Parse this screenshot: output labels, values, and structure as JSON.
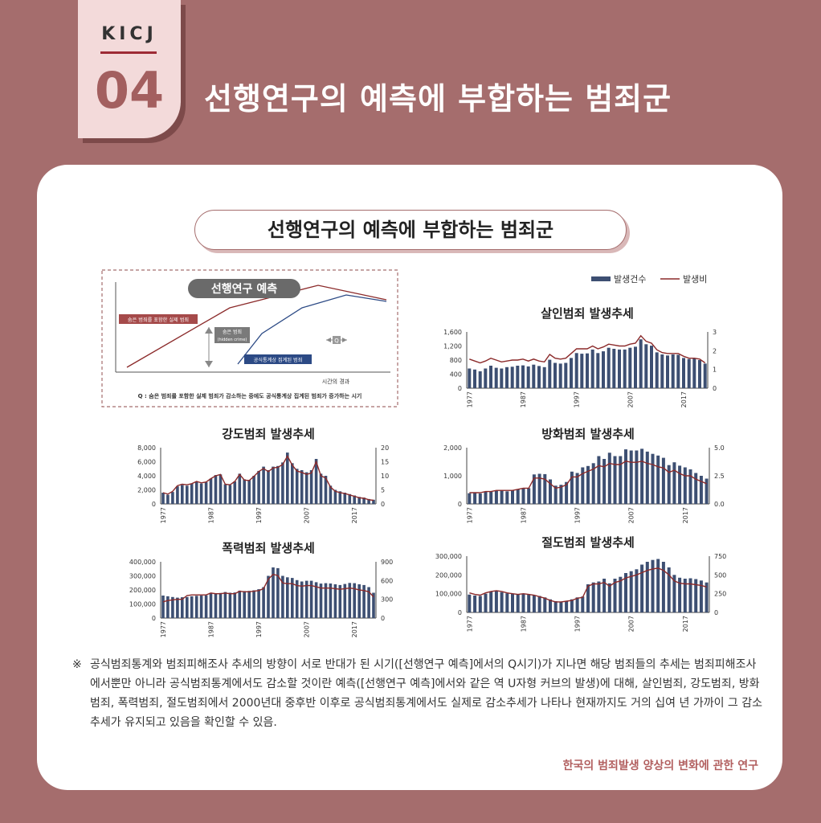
{
  "header": {
    "org": "KICJ",
    "number": "04",
    "title": "선행연구의 예측에 부합하는 범죄군"
  },
  "card": {
    "title": "선행연구의 예측에 부합하는 범죄군"
  },
  "legend": {
    "bars": "발생건수",
    "line": "발생비"
  },
  "diagram": {
    "title": "선행연구 예측",
    "label_actual": "숨은 범죄를 포함한 실제 범죄",
    "label_hidden": "숨은 범죄",
    "label_hidden_en": "(hidden crime)",
    "label_official": "공식통계상 집계된 범죄",
    "label_q": "Q",
    "xlabel": "시간의 경과",
    "caption": "Q : 숨은 범죄를 포함한 실제 범죄가 감소하는 중에도 공식통계상 집계된 범죄가 증가하는 시기"
  },
  "colors": {
    "bar": "#3d4f72",
    "line": "#8b2a2a",
    "accent": "#a56d6d"
  },
  "chart_data": [
    {
      "type": "bar",
      "title": "살인범죄 발생추세",
      "x": [
        1977,
        1978,
        1979,
        1980,
        1981,
        1982,
        1983,
        1984,
        1985,
        1986,
        1987,
        1988,
        1989,
        1990,
        1991,
        1992,
        1993,
        1994,
        1995,
        1996,
        1997,
        1998,
        1999,
        2000,
        2001,
        2002,
        2003,
        2004,
        2005,
        2006,
        2007,
        2008,
        2009,
        2010,
        2011,
        2012,
        2013,
        2014,
        2015,
        2016,
        2017,
        2018,
        2019,
        2020,
        2021
      ],
      "xticks": [
        "1977",
        "1987",
        "1997",
        "2007",
        "2017"
      ],
      "series": [
        {
          "name": "발생건수",
          "axis": "left",
          "values": [
            560,
            530,
            480,
            560,
            640,
            580,
            560,
            600,
            610,
            640,
            650,
            620,
            670,
            630,
            600,
            810,
            720,
            700,
            720,
            860,
            1000,
            980,
            990,
            1100,
            1000,
            1050,
            1150,
            1120,
            1100,
            1100,
            1150,
            1180,
            1390,
            1250,
            1210,
            1020,
            960,
            930,
            960,
            950,
            860,
            830,
            850,
            800,
            700
          ]
        },
        {
          "name": "발생비",
          "axis": "right",
          "values": [
            1.55,
            1.45,
            1.35,
            1.45,
            1.6,
            1.5,
            1.4,
            1.45,
            1.5,
            1.5,
            1.55,
            1.45,
            1.55,
            1.45,
            1.4,
            1.8,
            1.6,
            1.55,
            1.6,
            1.85,
            2.1,
            2.1,
            2.1,
            2.25,
            2.1,
            2.2,
            2.35,
            2.3,
            2.25,
            2.25,
            2.35,
            2.4,
            2.8,
            2.5,
            2.4,
            2.05,
            1.9,
            1.85,
            1.85,
            1.85,
            1.7,
            1.6,
            1.6,
            1.55,
            1.35
          ]
        }
      ],
      "yleft": {
        "min": 0,
        "max": 1600,
        "ticks": [
          "0",
          "400",
          "800",
          "1,200",
          "1,600"
        ]
      },
      "yright": {
        "min": 0,
        "max": 3,
        "ticks": [
          "0",
          "1",
          "2",
          "3"
        ]
      }
    },
    {
      "type": "bar",
      "title": "강도범죄 발생추세",
      "x": [
        1977,
        1978,
        1979,
        1980,
        1981,
        1982,
        1983,
        1984,
        1985,
        1986,
        1987,
        1988,
        1989,
        1990,
        1991,
        1992,
        1993,
        1994,
        1995,
        1996,
        1997,
        1998,
        1999,
        2000,
        2001,
        2002,
        2003,
        2004,
        2005,
        2006,
        2007,
        2008,
        2009,
        2010,
        2011,
        2012,
        2013,
        2014,
        2015,
        2016,
        2017,
        2018,
        2019,
        2020,
        2021
      ],
      "xticks": [
        "1977",
        "1987",
        "1997",
        "2007",
        "2017"
      ],
      "series": [
        {
          "name": "발생건수",
          "axis": "left",
          "values": [
            1600,
            1300,
            1700,
            2500,
            2700,
            2600,
            2900,
            3200,
            2900,
            3100,
            3600,
            4100,
            4200,
            2800,
            2700,
            3200,
            4300,
            3500,
            3400,
            4000,
            4700,
            5300,
            4800,
            5300,
            5400,
            5900,
            7300,
            5800,
            5000,
            4800,
            4500,
            4800,
            6400,
            4300,
            4000,
            2600,
            2000,
            1800,
            1600,
            1400,
            1200,
            1000,
            900,
            700,
            600
          ]
        },
        {
          "name": "발생비",
          "axis": "right",
          "values": [
            4,
            3.5,
            4.5,
            6.5,
            7,
            6.8,
            7.2,
            8,
            7.5,
            7.8,
            9,
            10,
            10.5,
            7,
            6.8,
            8,
            10.5,
            8.5,
            8.3,
            9.8,
            11.5,
            12.6,
            11.5,
            12.8,
            13,
            14,
            17,
            13.8,
            11.7,
            11.2,
            10.5,
            11,
            15,
            10,
            9.2,
            6,
            4.5,
            4,
            3.7,
            3.2,
            2.7,
            2.2,
            2,
            1.5,
            1.3
          ]
        }
      ],
      "yleft": {
        "min": 0,
        "max": 8000,
        "ticks": [
          "0",
          "2,000",
          "4,000",
          "6,000",
          "8,000"
        ]
      },
      "yright": {
        "min": 0,
        "max": 20,
        "ticks": [
          "0",
          "5",
          "10",
          "15",
          "20"
        ]
      }
    },
    {
      "type": "bar",
      "title": "방화범죄 발생추세",
      "x": [
        1977,
        1978,
        1979,
        1980,
        1981,
        1982,
        1983,
        1984,
        1985,
        1986,
        1987,
        1988,
        1989,
        1990,
        1991,
        1992,
        1993,
        1994,
        1995,
        1996,
        1997,
        1998,
        1999,
        2000,
        2001,
        2002,
        2003,
        2004,
        2005,
        2006,
        2007,
        2008,
        2009,
        2010,
        2011,
        2012,
        2013,
        2014,
        2015,
        2016,
        2017,
        2018,
        2019,
        2020,
        2021
      ],
      "xticks": [
        "1977",
        "1987",
        "1997",
        "2007",
        "2017"
      ],
      "series": [
        {
          "name": "발생건수",
          "axis": "left",
          "values": [
            380,
            400,
            370,
            430,
            450,
            470,
            470,
            450,
            480,
            520,
            560,
            560,
            1050,
            1070,
            1060,
            870,
            650,
            680,
            780,
            1150,
            1100,
            1300,
            1350,
            1450,
            1700,
            1600,
            1820,
            1700,
            1700,
            1940,
            1900,
            1900,
            1960,
            1860,
            1780,
            1720,
            1640,
            1380,
            1480,
            1360,
            1300,
            1230,
            1100,
            1000,
            900
          ]
        },
        {
          "name": "발생비",
          "axis": "right",
          "values": [
            1,
            1,
            1,
            1.1,
            1.1,
            1.2,
            1.2,
            1.2,
            1.2,
            1.3,
            1.4,
            1.4,
            2.3,
            2.3,
            2.2,
            1.8,
            1.4,
            1.5,
            1.7,
            2.4,
            2.4,
            2.7,
            2.9,
            3.1,
            3.4,
            3.3,
            3.6,
            3.5,
            3.5,
            3.8,
            3.7,
            3.7,
            3.8,
            3.6,
            3.5,
            3.3,
            3.2,
            2.8,
            3,
            2.7,
            2.5,
            2.5,
            2.2,
            2,
            1.8
          ]
        }
      ],
      "yleft": {
        "min": 0,
        "max": 2000,
        "ticks": [
          "0",
          "1,000",
          "2,000"
        ]
      },
      "yright": {
        "min": 0,
        "max": 5,
        "ticks": [
          "0.0",
          "2.5",
          "5.0"
        ]
      }
    },
    {
      "type": "bar",
      "title": "폭력범죄 발생추세",
      "x": [
        1977,
        1978,
        1979,
        1980,
        1981,
        1982,
        1983,
        1984,
        1985,
        1986,
        1987,
        1988,
        1989,
        1990,
        1991,
        1992,
        1993,
        1994,
        1995,
        1996,
        1997,
        1998,
        1999,
        2000,
        2001,
        2002,
        2003,
        2004,
        2005,
        2006,
        2007,
        2008,
        2009,
        2010,
        2011,
        2012,
        2013,
        2014,
        2015,
        2016,
        2017,
        2018,
        2019,
        2020,
        2021
      ],
      "xticks": [
        "1977",
        "1987",
        "1997",
        "2007",
        "2017"
      ],
      "series": [
        {
          "name": "발생건수",
          "axis": "left",
          "values": [
            160000,
            155000,
            150000,
            145000,
            148000,
            150000,
            155000,
            158000,
            160000,
            162000,
            180000,
            175000,
            178000,
            185000,
            180000,
            182000,
            195000,
            192000,
            193000,
            197000,
            205000,
            220000,
            300000,
            360000,
            355000,
            300000,
            290000,
            285000,
            270000,
            260000,
            265000,
            265000,
            255000,
            245000,
            248000,
            246000,
            240000,
            235000,
            242000,
            250000,
            248000,
            240000,
            235000,
            220000,
            180000
          ]
        },
        {
          "name": "발생비",
          "axis": "right",
          "values": [
            260,
            280,
            290,
            300,
            300,
            360,
            370,
            370,
            370,
            370,
            400,
            390,
            390,
            400,
            390,
            390,
            430,
            420,
            420,
            430,
            440,
            470,
            620,
            700,
            680,
            560,
            550,
            550,
            520,
            510,
            520,
            520,
            500,
            480,
            480,
            480,
            470,
            460,
            470,
            480,
            470,
            450,
            440,
            420,
            340
          ]
        }
      ],
      "yleft": {
        "min": 0,
        "max": 400000,
        "ticks": [
          "0",
          "100,000",
          "200,000",
          "300,000",
          "400,000"
        ]
      },
      "yright": {
        "min": 0,
        "max": 900,
        "ticks": [
          "0",
          "300",
          "600",
          "900"
        ]
      }
    },
    {
      "type": "bar",
      "title": "절도범죄 발생추세",
      "x": [
        1977,
        1978,
        1979,
        1980,
        1981,
        1982,
        1983,
        1984,
        1985,
        1986,
        1987,
        1988,
        1989,
        1990,
        1991,
        1992,
        1993,
        1994,
        1995,
        1996,
        1997,
        1998,
        1999,
        2000,
        2001,
        2002,
        2003,
        2004,
        2005,
        2006,
        2007,
        2008,
        2009,
        2010,
        2011,
        2012,
        2013,
        2014,
        2015,
        2016,
        2017,
        2018,
        2019,
        2020,
        2021
      ],
      "xticks": [
        "1977",
        "1987",
        "1997",
        "2007",
        "2017"
      ],
      "series": [
        {
          "name": "발생건수",
          "axis": "left",
          "values": [
            95000,
            90000,
            88000,
            100000,
            110000,
            115000,
            108000,
            102000,
            100000,
            98000,
            100000,
            95000,
            92000,
            88000,
            80000,
            70000,
            60000,
            58000,
            62000,
            70000,
            80000,
            85000,
            150000,
            160000,
            165000,
            180000,
            155000,
            180000,
            190000,
            210000,
            220000,
            230000,
            255000,
            270000,
            280000,
            285000,
            270000,
            240000,
            200000,
            185000,
            180000,
            182000,
            178000,
            170000,
            160000
          ]
        },
        {
          "name": "발생비",
          "axis": "right",
          "values": [
            260,
            240,
            230,
            260,
            280,
            290,
            280,
            260,
            250,
            240,
            250,
            240,
            230,
            210,
            190,
            160,
            140,
            140,
            150,
            160,
            190,
            200,
            350,
            380,
            380,
            400,
            350,
            400,
            420,
            460,
            480,
            500,
            530,
            560,
            580,
            590,
            560,
            500,
            420,
            390,
            380,
            380,
            370,
            360,
            340
          ]
        }
      ],
      "yleft": {
        "min": 0,
        "max": 300000,
        "ticks": [
          "0",
          "100,000",
          "200,000",
          "300,000"
        ]
      },
      "yright": {
        "min": 0,
        "max": 750,
        "ticks": [
          "0",
          "250",
          "500",
          "750"
        ]
      }
    }
  ],
  "note": {
    "mark": "※",
    "text": "공식범죄통계와 범죄피해조사 추세의 방향이 서로 반대가 된 시기([선행연구 예측]에서의 Q시기)가 지나면 해당 범죄들의 추세는 범죄피해조사에서뿐만 아니라 공식범죄통계에서도 감소할 것이란 예측([선행연구 예측]에서와 같은 역 U자형 커브의 발생)에 대해, 살인범죄, 강도범죄, 방화범죄, 폭력범죄, 절도범죄에서 2000년대 중후반 이후로 공식범죄통계에서도 실제로 감소추세가 나타나 현재까지도 거의 십여 년 가까이 그 감소추세가 유지되고 있음을 확인할 수 있음."
  },
  "source": "한국의 범죄발생 양상의 변화에 관한 연구"
}
